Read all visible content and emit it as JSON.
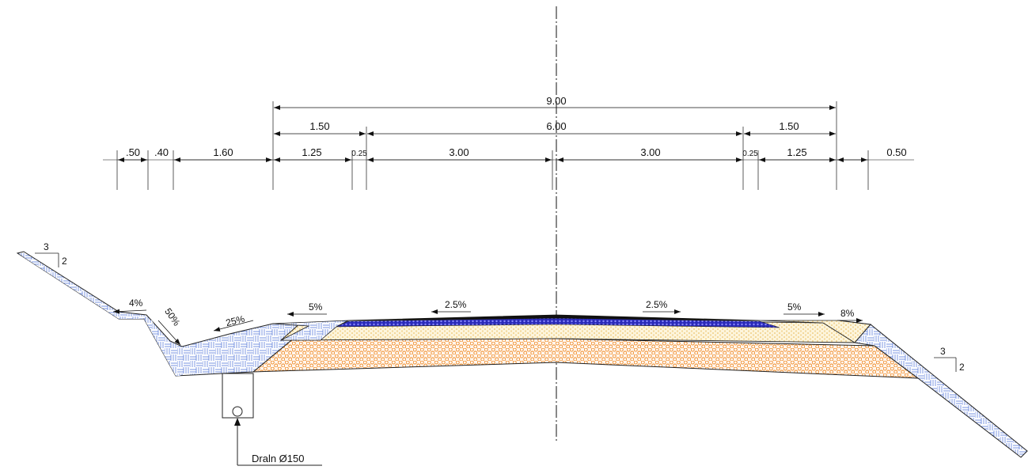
{
  "dimensions": {
    "total_width": "9.00",
    "left_shoulder": "1.50",
    "carriageway": "6.00",
    "right_shoulder": "1.50",
    "row3": {
      "d1": ".50",
      "d2": ".40",
      "d3": "1.60",
      "d4": "1.25",
      "d5": "0.25",
      "d6": "3.00",
      "d7": "3.00",
      "d8": "0.25",
      "d9": "1.25",
      "d10": "0.50"
    }
  },
  "slopes": {
    "left_cut_ratio_top": "3",
    "left_cut_ratio_side": "2",
    "ditch_back": "4%",
    "ditch_front": "50%",
    "berm": "25%",
    "left_shoulder": "5%",
    "left_lane": "2.5%",
    "right_lane": "2.5%",
    "right_shoulder": "5%",
    "right_verge": "8%",
    "right_fill_ratio_top": "3",
    "right_fill_ratio_side": "2"
  },
  "drain": {
    "label": "Draln Ø150"
  },
  "colors": {
    "topsoil_line": "#4a6fd8",
    "subbase_orange": "#f08a24",
    "base_yellow": "#f5c542",
    "asphalt": "#111111",
    "blue_course": "#2a2ab8"
  }
}
